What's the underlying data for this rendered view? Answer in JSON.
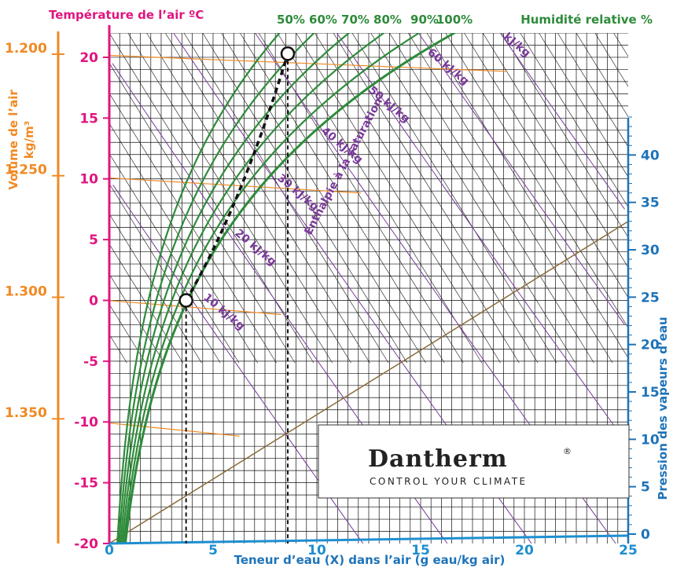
{
  "chart_data": {
    "type": "line",
    "title_left": "Température de l’air ºC",
    "title_right": "Humidité relative %",
    "xlabel": "Teneur d’eau (X) dans l’air (g eau/kg air)",
    "y_left_label_line1": "Volume de l’air",
    "y_left_label_line2": "kg/m³",
    "y_right_label": "Pression des vapeurs d’eau",
    "xlim": [
      0,
      25
    ],
    "ylim": [
      -20,
      22
    ],
    "x_ticks": [
      "0",
      "5",
      "10",
      "15",
      "20",
      "25"
    ],
    "y_ticks": [
      "-20",
      "-15",
      "-10",
      "-5",
      "0",
      "5",
      "10",
      "15",
      "20"
    ],
    "pressure_ticks": [
      "0",
      "5",
      "10",
      "15",
      "20",
      "25",
      "30",
      "35",
      "40"
    ],
    "volume_ticks": [
      {
        "label": "1.200",
        "temp": 20
      },
      {
        "label": "1.250",
        "temp": 10
      },
      {
        "label": "1.300",
        "temp": 0
      },
      {
        "label": "1.350",
        "temp": -10
      }
    ],
    "rh_labels": [
      "50%",
      "60%",
      "70%",
      "80%",
      "90%",
      "100%"
    ],
    "rh_curves": [
      50,
      60,
      70,
      80,
      90,
      100
    ],
    "enthalpy_labels": [
      "10 kJ/kg",
      "20 kJ/kg",
      "30 kJ/kg",
      "40 kJ/kg",
      "50 kJ/kg",
      "60 kJ/kg",
      "kJ/kg"
    ],
    "saturation_label": "Enthalpie à la saturation",
    "process": {
      "points": [
        {
          "x": 3.7,
          "t": 0
        },
        {
          "x": 8.6,
          "t": 20.3
        }
      ]
    }
  },
  "logo": {
    "name": "Dantherm",
    "mark": "®",
    "tagline": "CONTROL YOUR CLIMATE"
  },
  "colors": {
    "temperature": "#e0157f",
    "humidity": "#2e8b3a",
    "volume": "#f08a24",
    "pressure": "#1e73b8",
    "enthalpy": "#7a3a9a",
    "xaxis": "#1e8fd0"
  }
}
